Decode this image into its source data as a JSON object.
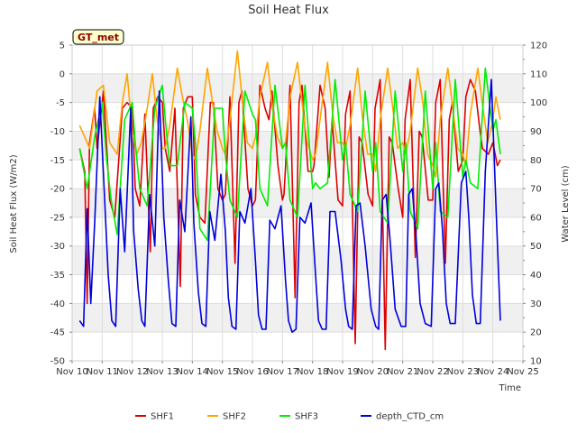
{
  "chart_data": {
    "type": "line",
    "title": "Soil Heat Flux",
    "xlabel": "Time",
    "ylabel": "Soil Heat Flux (W/m2)",
    "ylabel_right": "Water Level (cm)",
    "badge": "GT_met",
    "ylim": [
      -50,
      5
    ],
    "ylim_right": [
      10,
      120
    ],
    "xlim": [
      10,
      25
    ],
    "x_ticks": [
      10,
      11,
      12,
      13,
      14,
      15,
      16,
      17,
      18,
      19,
      20,
      21,
      22,
      23,
      24,
      25
    ],
    "x_tick_labels": [
      "Nov 10",
      "Nov 11",
      "Nov 12",
      "Nov 13",
      "Nov 14",
      "Nov 15",
      "Nov 16",
      "Nov 17",
      "Nov 18",
      "Nov 19",
      "Nov 20",
      "Nov 21",
      "Nov 22",
      "Nov 23",
      "Nov 24",
      "Nov 25"
    ],
    "y_ticks": [
      5,
      0,
      -5,
      -10,
      -15,
      -20,
      -25,
      -30,
      -35,
      -40,
      -45,
      -50
    ],
    "y_tick_labels": [
      "5",
      "0",
      "-5",
      "-10",
      "-15",
      "-20",
      "-25",
      "-30",
      "-35",
      "-40",
      "-45",
      "-50"
    ],
    "y_right_ticks": [
      120,
      110,
      100,
      90,
      80,
      70,
      60,
      50,
      40,
      30,
      20,
      10
    ],
    "y_right_tick_labels": [
      "120",
      "110",
      "100",
      "90",
      "80",
      "70",
      "60",
      "50",
      "40",
      "30",
      "20",
      "10"
    ],
    "grid": true,
    "legend_position": "bottom-center",
    "series": [
      {
        "name": "SHF1",
        "color": "#dd0000",
        "axis": "left",
        "x": [
          10.25,
          10.42,
          10.5,
          10.58,
          10.75,
          10.83,
          11.04,
          11.25,
          11.42,
          11.67,
          11.83,
          12.0,
          12.1,
          12.25,
          12.42,
          12.6,
          12.7,
          12.85,
          13.0,
          13.1,
          13.25,
          13.42,
          13.6,
          13.7,
          13.85,
          14.0,
          14.1,
          14.25,
          14.42,
          14.6,
          14.7,
          14.85,
          15.0,
          15.1,
          15.25,
          15.42,
          15.55,
          15.65,
          15.85,
          16.0,
          16.1,
          16.25,
          16.42,
          16.55,
          16.65,
          16.85,
          17.0,
          17.05,
          17.25,
          17.42,
          17.55,
          17.65,
          17.85,
          18.0,
          18.05,
          18.25,
          18.42,
          18.55,
          18.65,
          18.85,
          19.0,
          19.1,
          19.25,
          19.42,
          19.55,
          19.65,
          19.85,
          20.0,
          20.08,
          20.25,
          20.42,
          20.55,
          20.65,
          20.85,
          21.0,
          21.08,
          21.25,
          21.42,
          21.55,
          21.65,
          21.85,
          22.0,
          22.1,
          22.25,
          22.42,
          22.55,
          22.65,
          22.85,
          23.0,
          23.1,
          23.25,
          23.42,
          23.55,
          23.65,
          23.85,
          24.0,
          24.15,
          24.25
        ],
        "values": [
          -13,
          -17,
          -40,
          -12,
          -6,
          -13,
          -3,
          -22,
          -25,
          -6,
          -5,
          -6,
          -20,
          -23,
          -7,
          -31,
          -6,
          -4,
          -5,
          -13,
          -17,
          -6,
          -37,
          -6,
          -4,
          -4,
          -21,
          -25,
          -26,
          -5,
          -5,
          -20,
          -22,
          -21,
          -4,
          -33,
          -5,
          -3,
          -20,
          -23,
          -22,
          -2,
          -6,
          -8,
          -3,
          -16,
          -22,
          -21,
          -2,
          -39,
          -5,
          -2,
          -17,
          -17,
          -16,
          -2,
          -6,
          -18,
          -8,
          -22,
          -23,
          -7,
          -3,
          -47,
          -11,
          -12,
          -21,
          -23,
          -6,
          -1,
          -48,
          -11,
          -12,
          -20,
          -25,
          -8,
          -1,
          -32,
          -10,
          -11,
          -22,
          -22,
          -5,
          -1,
          -33,
          -8,
          -5,
          -17,
          -15,
          -4,
          -1,
          -3,
          -9,
          -13,
          -14,
          -12,
          -16,
          -15
        ]
      },
      {
        "name": "SHF2",
        "color": "#ffa500",
        "axis": "left",
        "x": [
          10.25,
          10.42,
          10.58,
          10.83,
          11.04,
          11.25,
          11.5,
          11.67,
          11.83,
          12.0,
          12.15,
          12.3,
          12.5,
          12.67,
          12.83,
          13.0,
          13.1,
          13.25,
          13.5,
          13.67,
          13.83,
          14.0,
          14.1,
          14.25,
          14.5,
          14.67,
          14.83,
          15.0,
          15.1,
          15.25,
          15.5,
          15.67,
          15.83,
          16.0,
          16.1,
          16.25,
          16.5,
          16.67,
          16.83,
          17.0,
          17.1,
          17.25,
          17.5,
          17.67,
          17.83,
          18.0,
          18.1,
          18.25,
          18.5,
          18.67,
          18.83,
          19.0,
          19.1,
          19.25,
          19.5,
          19.67,
          19.83,
          20.0,
          20.1,
          20.25,
          20.5,
          20.67,
          20.83,
          21.0,
          21.1,
          21.25,
          21.5,
          21.67,
          21.83,
          22.0,
          22.1,
          22.25,
          22.5,
          22.67,
          22.83,
          23.0,
          23.1,
          23.25,
          23.5,
          23.67,
          23.83,
          24.0,
          24.1,
          24.25
        ],
        "values": [
          -9,
          -11,
          -13,
          -3,
          -2,
          -12,
          -14,
          -5,
          0,
          -10,
          -14,
          -12,
          -6,
          0,
          -8,
          -13,
          -13,
          -9,
          1,
          -4,
          -8,
          -14,
          -15,
          -10,
          1,
          -5,
          -10,
          -13,
          -14,
          -8,
          4,
          -5,
          -12,
          -13,
          -11,
          -4,
          2,
          -6,
          -11,
          -13,
          -12,
          -4,
          2,
          -6,
          -12,
          -15,
          -14,
          -8,
          2,
          -7,
          -12,
          -12,
          -13,
          -9,
          1,
          -8,
          -14,
          -14,
          -17,
          -8,
          1,
          -6,
          -13,
          -12,
          -14,
          -10,
          1,
          -5,
          -14,
          -16,
          -18,
          -8,
          1,
          -6,
          -13,
          -14,
          -16,
          -7,
          1,
          -6,
          -12,
          -8,
          -4,
          -8
        ]
      },
      {
        "name": "SHF3",
        "color": "#00ee00",
        "axis": "left",
        "x": [
          10.25,
          10.5,
          10.75,
          11.0,
          11.15,
          11.3,
          11.5,
          11.75,
          12.0,
          12.1,
          12.25,
          12.5,
          12.75,
          13.0,
          13.1,
          13.25,
          13.5,
          13.75,
          14.0,
          14.1,
          14.25,
          14.5,
          14.75,
          15.0,
          15.1,
          15.25,
          15.5,
          15.75,
          16.0,
          16.1,
          16.25,
          16.5,
          16.75,
          17.0,
          17.1,
          17.25,
          17.5,
          17.75,
          18.0,
          18.1,
          18.25,
          18.5,
          18.75,
          19.0,
          19.1,
          19.25,
          19.5,
          19.75,
          20.0,
          20.1,
          20.25,
          20.5,
          20.75,
          21.0,
          21.1,
          21.25,
          21.5,
          21.75,
          22.0,
          22.1,
          22.25,
          22.5,
          22.75,
          23.0,
          23.1,
          23.25,
          23.5,
          23.75,
          24.0,
          24.1,
          24.25
        ],
        "values": [
          -13,
          -20,
          -11,
          -5,
          -15,
          -22,
          -28,
          -8,
          -5,
          -12,
          -20,
          -23,
          -6,
          -2,
          -8,
          -16,
          -16,
          -5,
          -6,
          -12,
          -27,
          -29,
          -6,
          -6,
          -14,
          -22,
          -25,
          -3,
          -7,
          -8,
          -20,
          -23,
          -2,
          -13,
          -12,
          -22,
          -25,
          -2,
          -20,
          -19,
          -20,
          -19,
          -1,
          -15,
          -12,
          -21,
          -24,
          -3,
          -17,
          -12,
          -24,
          -26,
          -3,
          -17,
          -12,
          -24,
          -27,
          -3,
          -20,
          -12,
          -24,
          -25,
          -1,
          -18,
          -15,
          -19,
          -20,
          1,
          -10,
          -8,
          -14
        ]
      },
      {
        "name": "depth_CTD_cm",
        "color": "#0000dd",
        "axis": "right",
        "x": [
          10.25,
          10.38,
          10.5,
          10.62,
          10.75,
          10.92,
          11.1,
          11.2,
          11.32,
          11.45,
          11.6,
          11.75,
          11.95,
          12.05,
          12.2,
          12.32,
          12.42,
          12.58,
          12.75,
          12.9,
          13.05,
          13.2,
          13.32,
          13.45,
          13.58,
          13.75,
          13.95,
          14.05,
          14.2,
          14.32,
          14.45,
          14.58,
          14.75,
          14.95,
          15.1,
          15.2,
          15.32,
          15.45,
          15.58,
          15.75,
          15.95,
          16.1,
          16.2,
          16.32,
          16.45,
          16.58,
          16.75,
          16.95,
          17.1,
          17.2,
          17.32,
          17.45,
          17.58,
          17.75,
          17.95,
          18.1,
          18.2,
          18.32,
          18.45,
          18.58,
          18.75,
          18.95,
          19.1,
          19.2,
          19.32,
          19.45,
          19.58,
          19.75,
          19.95,
          20.1,
          20.2,
          20.32,
          20.45,
          20.58,
          20.75,
          20.95,
          21.1,
          21.2,
          21.32,
          21.45,
          21.58,
          21.75,
          21.95,
          22.1,
          22.2,
          22.32,
          22.45,
          22.58,
          22.75,
          22.95,
          23.1,
          23.2,
          23.32,
          23.45,
          23.58,
          23.75,
          23.95,
          24.1,
          24.25
        ],
        "values": [
          24,
          22,
          63,
          30,
          58,
          102,
          62,
          40,
          24,
          22,
          70,
          48,
          98,
          55,
          35,
          24,
          22,
          68,
          50,
          104,
          60,
          38,
          23,
          22,
          66,
          55,
          95,
          58,
          34,
          23,
          22,
          62,
          52,
          75,
          55,
          32,
          22,
          21,
          62,
          58,
          70,
          45,
          26,
          21,
          21,
          59,
          56,
          64,
          38,
          24,
          20,
          21,
          60,
          58,
          65,
          40,
          24,
          21,
          21,
          62,
          62,
          45,
          28,
          22,
          21,
          64,
          65,
          50,
          28,
          22,
          21,
          66,
          68,
          52,
          28,
          22,
          22,
          68,
          70,
          52,
          30,
          23,
          22,
          70,
          72,
          56,
          30,
          23,
          23,
          72,
          76,
          60,
          33,
          23,
          23,
          76,
          108,
          65,
          24
        ]
      }
    ]
  }
}
